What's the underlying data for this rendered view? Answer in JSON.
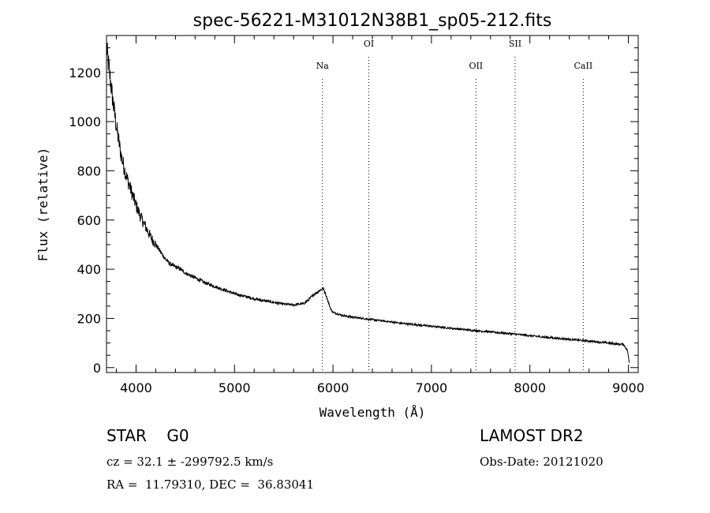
{
  "chart_data": {
    "type": "line",
    "title": "spec-56221-M31012N38B1_sp05-212.fits",
    "xlabel": "Wavelength (Å)",
    "ylabel": "Flux (relative)",
    "xlim": [
      3700,
      9100
    ],
    "ylim": [
      -20,
      1350
    ],
    "xticks": [
      4000,
      5000,
      6000,
      7000,
      8000,
      9000
    ],
    "xtick_labels": [
      "4000",
      "5000",
      "6000",
      "7000",
      "8000",
      "9000"
    ],
    "yticks": [
      0,
      200,
      400,
      600,
      800,
      1000,
      1200
    ],
    "ytick_labels": [
      "0",
      "200",
      "400",
      "600",
      "800",
      "1000",
      "1200"
    ],
    "grid": false,
    "series": [
      {
        "name": "spectrum",
        "x": [
          3700,
          3730,
          3760,
          3800,
          3850,
          3900,
          3950,
          4000,
          4050,
          4100,
          4150,
          4200,
          4250,
          4300,
          4350,
          4400,
          4450,
          4500,
          4600,
          4700,
          4800,
          4900,
          5000,
          5100,
          5200,
          5300,
          5400,
          5500,
          5600,
          5700,
          5750,
          5800,
          5850,
          5880,
          5900,
          5920,
          5950,
          5980,
          6000,
          6050,
          6100,
          6200,
          6300,
          6400,
          6500,
          6600,
          6700,
          6800,
          6900,
          7000,
          7200,
          7400,
          7600,
          7800,
          8000,
          8200,
          8400,
          8600,
          8800,
          8900,
          8950,
          8990,
          9010
        ],
        "y": [
          1300,
          1200,
          1100,
          980,
          860,
          780,
          720,
          660,
          610,
          570,
          530,
          500,
          470,
          440,
          420,
          410,
          400,
          385,
          365,
          345,
          330,
          315,
          300,
          290,
          280,
          272,
          265,
          258,
          255,
          260,
          275,
          295,
          310,
          318,
          322,
          305,
          270,
          235,
          225,
          218,
          212,
          205,
          200,
          195,
          190,
          185,
          180,
          176,
          172,
          168,
          160,
          152,
          145,
          138,
          130,
          122,
          115,
          108,
          100,
          95,
          95,
          70,
          20
        ]
      }
    ],
    "lines": [
      {
        "label": "Na",
        "x": 5893
      },
      {
        "label": "OI",
        "x": 6364
      },
      {
        "label": "OII",
        "x": 7452
      },
      {
        "label": "SII",
        "x": 7850
      },
      {
        "label": "CaII",
        "x": 8542
      }
    ]
  },
  "info": {
    "object_class": "STAR    G0",
    "survey": "LAMOST DR2",
    "cz": "cz = 32.1 ± -299792.5 km/s",
    "obs_date": "Obs-Date: 20121020",
    "radec": "RA =  11.79310, DEC =  36.83041"
  }
}
